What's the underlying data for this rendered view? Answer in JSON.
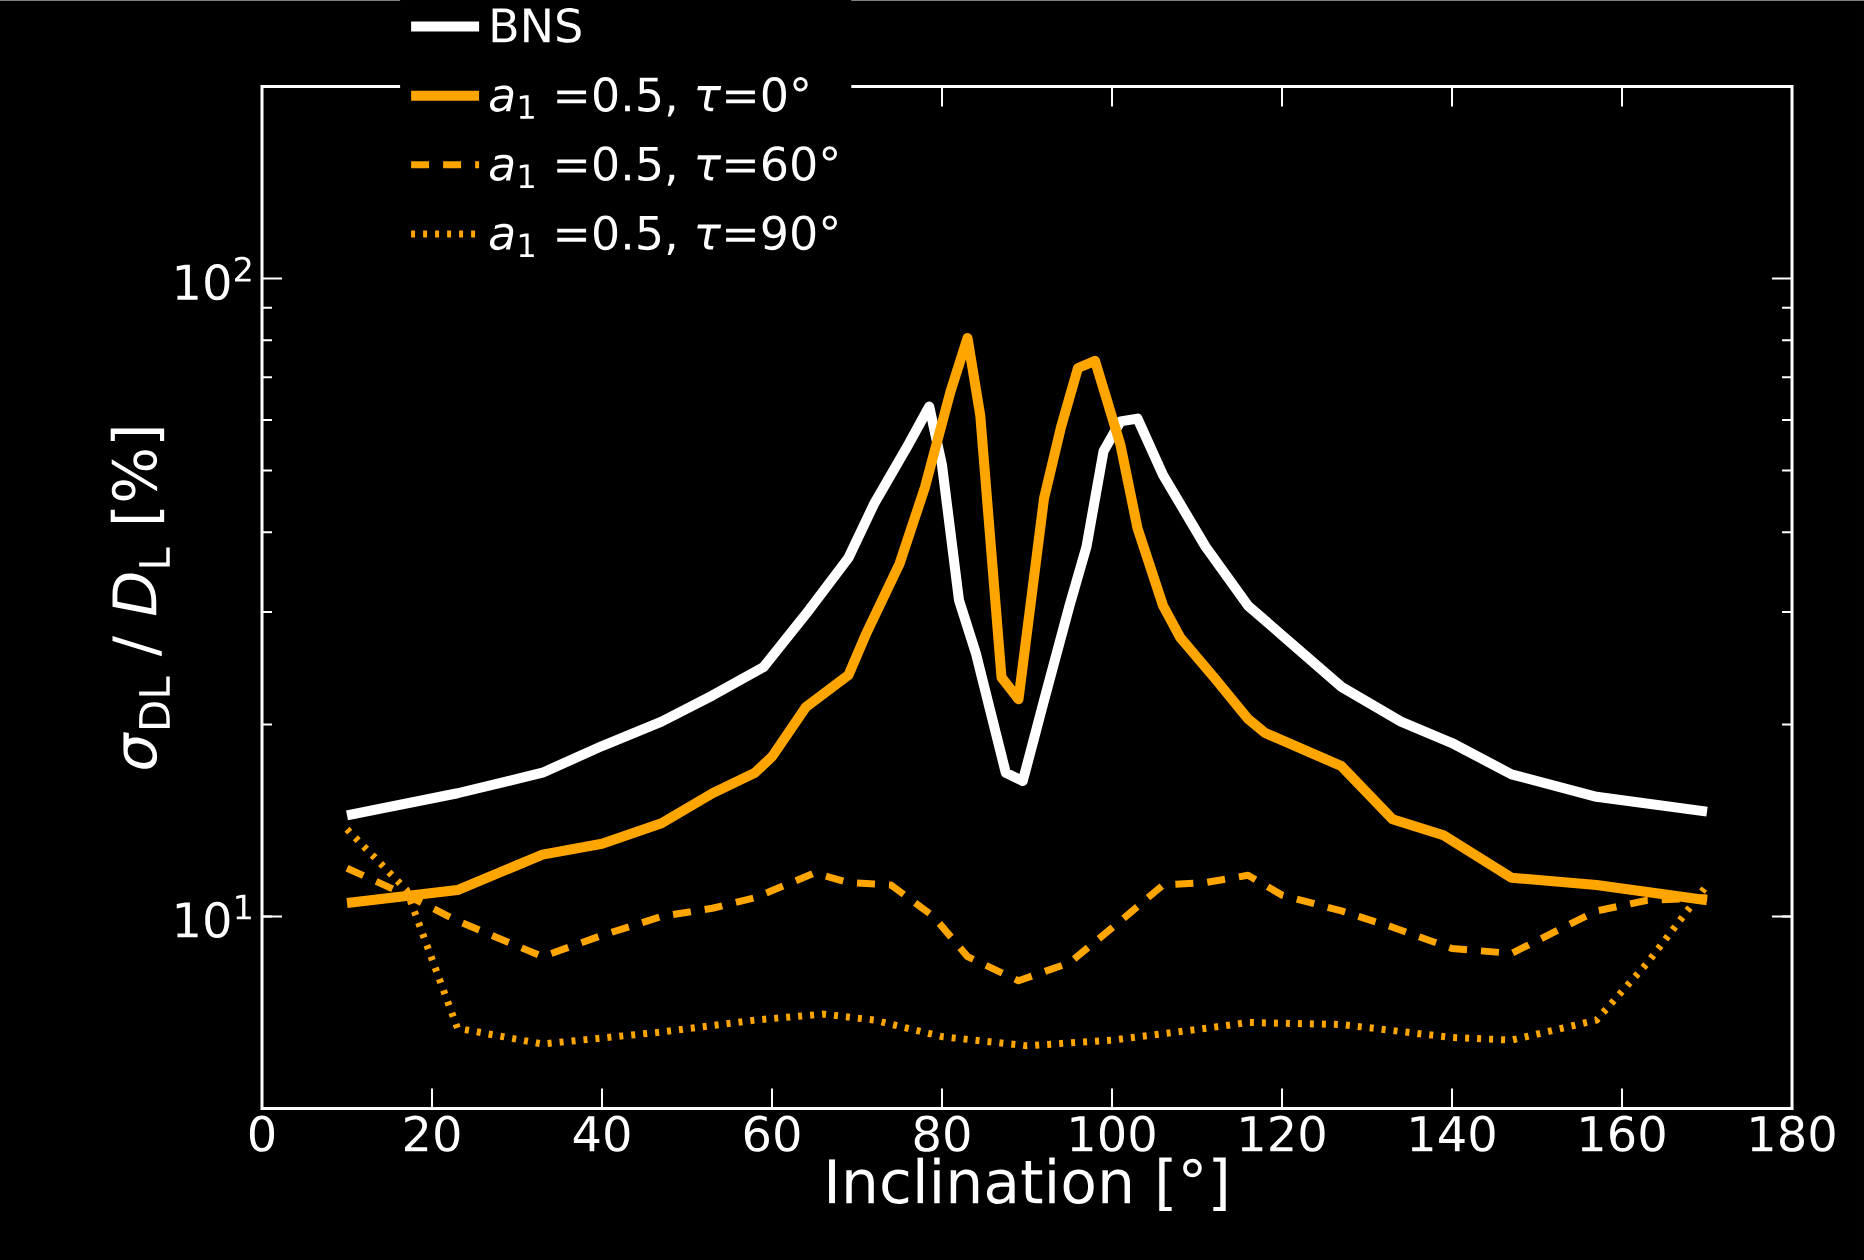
{
  "chart_data": {
    "type": "line",
    "xlabel": "Inclination [°]",
    "ylabel": "*σ*$_{DL}$ / *D*$_{L}$  [%]",
    "log": "y",
    "legend": "top",
    "xlim": [
      0,
      180
    ],
    "xticks": [
      0,
      20,
      40,
      60,
      80,
      100,
      120,
      140,
      160,
      180
    ],
    "ylim": [
      5,
      200
    ],
    "yticks": [
      {
        "value": 10,
        "label": "10$^{1}$"
      },
      {
        "value": 100,
        "label": "10$^{2}$"
      }
    ],
    "series": [
      {
        "name": "BNS",
        "color": "#ffffff",
        "line_style": "solid",
        "x": [
          10,
          23,
          33,
          40,
          47,
          53,
          59,
          64,
          69,
          72,
          76,
          78.5,
          80,
          82,
          84,
          87.5,
          89.5,
          92,
          95,
          97,
          99,
          101,
          103,
          106,
          111,
          116,
          120,
          127,
          134,
          140,
          147,
          157,
          170
        ],
        "values": [
          14.4,
          15.6,
          16.8,
          18.5,
          20.2,
          22.2,
          24.6,
          29.8,
          36.5,
          44.3,
          54.8,
          63,
          51,
          31.3,
          25.8,
          16.8,
          16.3,
          21.8,
          30.7,
          38,
          53.6,
          59.7,
          60.3,
          49.2,
          38,
          30.7,
          27.6,
          22.9,
          20.2,
          18.7,
          16.7,
          15.4,
          14.6
        ]
      },
      {
        "name": "*a*$_{1}$ =0.5, *τ*=0°",
        "color": "#ffa500",
        "line_style": "solid",
        "x": [
          10,
          23,
          33,
          40,
          47,
          53,
          58,
          60,
          64,
          69,
          71,
          75,
          78,
          81,
          83,
          84.5,
          87,
          89,
          92,
          94,
          96,
          98,
          101,
          103,
          106,
          108,
          112,
          116,
          118,
          127,
          133,
          139,
          147,
          157,
          170
        ],
        "values": [
          10.5,
          11.0,
          12.5,
          13.0,
          14.0,
          15.6,
          16.8,
          17.8,
          21.3,
          23.9,
          27.6,
          35.7,
          47.1,
          66.5,
          80.7,
          61,
          23.7,
          21.9,
          45.2,
          58.5,
          72.4,
          74.3,
          54.8,
          40.6,
          30.7,
          27.4,
          23.7,
          20.4,
          19.4,
          17.2,
          14.2,
          13.4,
          11.5,
          11.2,
          10.6
        ]
      },
      {
        "name": "*a*$_{1}$ =0.5, *τ*=60°",
        "color": "#ffa500",
        "line_style": "dashed",
        "x": [
          10,
          17,
          23,
          33,
          40,
          47,
          53,
          58,
          65,
          69,
          74,
          79,
          83,
          89,
          95,
          101,
          106,
          111,
          116,
          120,
          127,
          133,
          140,
          147,
          157,
          163,
          170
        ],
        "values": [
          11.9,
          10.8,
          9.84,
          8.65,
          9.34,
          10.0,
          10.3,
          10.7,
          11.7,
          11.3,
          11.2,
          10.0,
          8.65,
          7.93,
          8.46,
          9.84,
          11.2,
          11.3,
          11.6,
          10.8,
          10.2,
          9.62,
          8.91,
          8.75,
          10.2,
          10.6,
          10.7
        ]
      },
      {
        "name": "*a*$_{1}$ =0.5, *τ*=90°",
        "color": "#ffa500",
        "line_style": "dotted",
        "x": [
          10,
          17,
          23,
          33,
          47,
          58,
          66,
          72,
          80,
          90,
          100,
          110,
          116,
          127,
          140,
          147,
          157,
          163,
          170
        ],
        "values": [
          13.7,
          11.0,
          6.68,
          6.31,
          6.59,
          6.88,
          7.03,
          6.88,
          6.48,
          6.27,
          6.4,
          6.65,
          6.82,
          6.77,
          6.46,
          6.4,
          6.88,
          8.46,
          11.2
        ]
      }
    ]
  }
}
